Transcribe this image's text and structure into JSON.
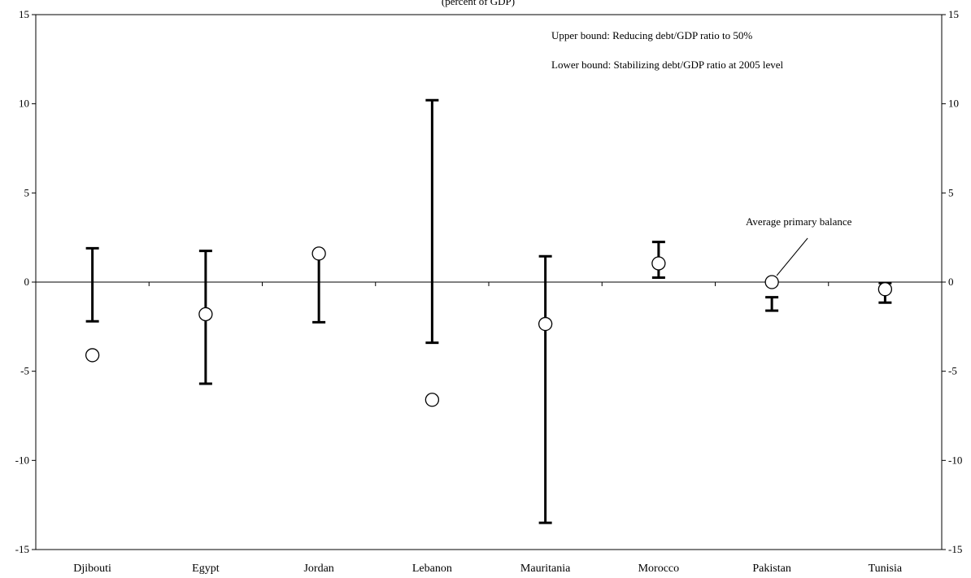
{
  "chart_data": {
    "type": "scatter",
    "subtitle": "(percent of GDP)",
    "categories": [
      "Djibouti",
      "Egypt",
      "Jordan",
      "Lebanon",
      "Mauritania",
      "Morocco",
      "Pakistan",
      "Tunisia"
    ],
    "series": [
      {
        "name": "Upper bound: Reducing debt/GDP ratio to 50%",
        "values": [
          1.9,
          1.75,
          1.55,
          10.2,
          1.45,
          2.25,
          -0.85,
          -0.05
        ]
      },
      {
        "name": "Lower bound: Stabilizing debt/GDP ratio at 2005 level",
        "values": [
          -2.2,
          -5.7,
          -2.25,
          -3.4,
          -13.5,
          0.25,
          -1.6,
          -1.15
        ]
      },
      {
        "name": "Average primary balance",
        "values": [
          -4.1,
          -1.8,
          1.6,
          -6.6,
          -2.35,
          1.05,
          0.0,
          -0.4
        ]
      }
    ],
    "ylim": [
      -15,
      15
    ],
    "yticks": [
      -15,
      -10,
      -5,
      0,
      5,
      10,
      15
    ],
    "secondary_y_axis": true,
    "grid": false,
    "legend": "top-right",
    "annotations": [
      {
        "text": "Average primary balance",
        "category": "Pakistan"
      }
    ]
  }
}
